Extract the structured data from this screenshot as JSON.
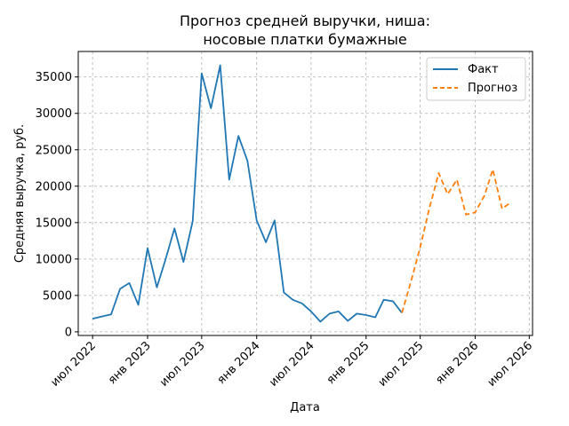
{
  "chart_data": {
    "type": "line",
    "title_lines": [
      "Прогноз средней выручки, ниша:",
      "носовые платки бумажные"
    ],
    "xlabel": "Дата",
    "ylabel": "Средняя выручка, руб.",
    "xlim": [
      "2022-05-14",
      "2026-07-12"
    ],
    "ylim": [
      -500,
      38500
    ],
    "y_ticks": [
      0,
      5000,
      10000,
      15000,
      20000,
      25000,
      30000,
      35000
    ],
    "x_ticks": [
      {
        "date": "2022-07-01",
        "label": "июл 2022"
      },
      {
        "date": "2023-01-01",
        "label": "янв 2023"
      },
      {
        "date": "2023-07-01",
        "label": "июл 2023"
      },
      {
        "date": "2024-01-01",
        "label": "янв 2024"
      },
      {
        "date": "2024-07-01",
        "label": "июл 2024"
      },
      {
        "date": "2025-01-01",
        "label": "янв 2025"
      },
      {
        "date": "2025-07-01",
        "label": "июл 2025"
      },
      {
        "date": "2026-01-01",
        "label": "янв 2026"
      },
      {
        "date": "2026-07-01",
        "label": "июл 2026"
      }
    ],
    "grid": true,
    "legend_position": "top-right",
    "series": [
      {
        "name": "Факт",
        "color": "#1f77b4",
        "style": "solid",
        "points": [
          [
            "2022-07-01",
            1800
          ],
          [
            "2022-08-01",
            2100
          ],
          [
            "2022-09-01",
            2400
          ],
          [
            "2022-10-01",
            5900
          ],
          [
            "2022-11-01",
            6700
          ],
          [
            "2022-12-01",
            3700
          ],
          [
            "2023-01-01",
            11500
          ],
          [
            "2023-02-01",
            6100
          ],
          [
            "2023-03-01",
            9800
          ],
          [
            "2023-04-01",
            14200
          ],
          [
            "2023-05-01",
            9600
          ],
          [
            "2023-06-01",
            15200
          ],
          [
            "2023-07-01",
            35500
          ],
          [
            "2023-08-01",
            30700
          ],
          [
            "2023-09-01",
            36600
          ],
          [
            "2023-10-01",
            20900
          ],
          [
            "2023-11-01",
            26900
          ],
          [
            "2023-12-01",
            23500
          ],
          [
            "2024-01-01",
            15300
          ],
          [
            "2024-02-01",
            12300
          ],
          [
            "2024-03-01",
            15300
          ],
          [
            "2024-04-01",
            5400
          ],
          [
            "2024-05-01",
            4400
          ],
          [
            "2024-06-01",
            3900
          ],
          [
            "2024-07-01",
            2800
          ],
          [
            "2024-08-01",
            1400
          ],
          [
            "2024-09-01",
            2500
          ],
          [
            "2024-10-01",
            2800
          ],
          [
            "2024-11-01",
            1500
          ],
          [
            "2024-12-01",
            2500
          ],
          [
            "2025-01-01",
            2300
          ],
          [
            "2025-02-01",
            2000
          ],
          [
            "2025-03-01",
            4400
          ],
          [
            "2025-04-01",
            4200
          ],
          [
            "2025-05-01",
            2600
          ]
        ]
      },
      {
        "name": "Прогноз",
        "color": "#ff7f0e",
        "style": "dashed",
        "points": [
          [
            "2025-05-01",
            2600
          ],
          [
            "2025-06-01",
            7000
          ],
          [
            "2025-07-01",
            11600
          ],
          [
            "2025-08-01",
            17000
          ],
          [
            "2025-09-01",
            21800
          ],
          [
            "2025-10-01",
            18900
          ],
          [
            "2025-11-01",
            20900
          ],
          [
            "2025-12-01",
            16100
          ],
          [
            "2026-01-01",
            16400
          ],
          [
            "2026-02-01",
            18700
          ],
          [
            "2026-03-01",
            22300
          ],
          [
            "2026-04-01",
            16900
          ],
          [
            "2026-05-01",
            17800
          ]
        ]
      }
    ]
  }
}
